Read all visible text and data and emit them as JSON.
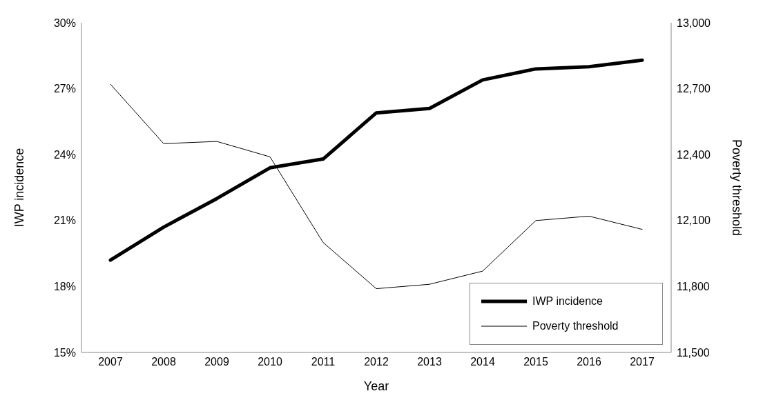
{
  "chart_data": {
    "type": "line",
    "xlabel": "Year",
    "ylabel": "IWP incidence",
    "y2label": "Poverty threshold",
    "categories": [
      "2007",
      "2008",
      "2009",
      "2010",
      "2011",
      "2012",
      "2013",
      "2014",
      "2015",
      "2016",
      "2017"
    ],
    "series": [
      {
        "name": "IWP incidence",
        "color": "#000000",
        "values": [
          19.2,
          20.7,
          22.0,
          23.4,
          23.8,
          25.9,
          26.1,
          27.4,
          27.9,
          28.0,
          28.3
        ]
      },
      {
        "name": "Poverty threshold",
        "color": "#000000",
        "axis": "y2",
        "values": [
          12720,
          12450,
          12460,
          12390,
          12000,
          11790,
          11810,
          11870,
          12100,
          12120,
          12060
        ]
      }
    ],
    "ylim": [
      15,
      30
    ],
    "yticks": [
      {
        "value": 15,
        "label": "15%"
      },
      {
        "value": 18,
        "label": "18%"
      },
      {
        "value": 21,
        "label": "21%"
      },
      {
        "value": 24,
        "label": "24%"
      },
      {
        "value": 27,
        "label": "27%"
      },
      {
        "value": 30,
        "label": "30%"
      }
    ],
    "y2lim": [
      11500,
      13000
    ],
    "y2ticks": [
      {
        "value": 11500,
        "label": "11,500"
      },
      {
        "value": 11800,
        "label": "11,800"
      },
      {
        "value": 12100,
        "label": "12,100"
      },
      {
        "value": 12400,
        "label": "12,400"
      },
      {
        "value": 12700,
        "label": "12,700"
      },
      {
        "value": 13000,
        "label": "13,000"
      }
    ],
    "grid": false,
    "legend": "bottom right",
    "marker": "none",
    "line_style": "solid"
  }
}
